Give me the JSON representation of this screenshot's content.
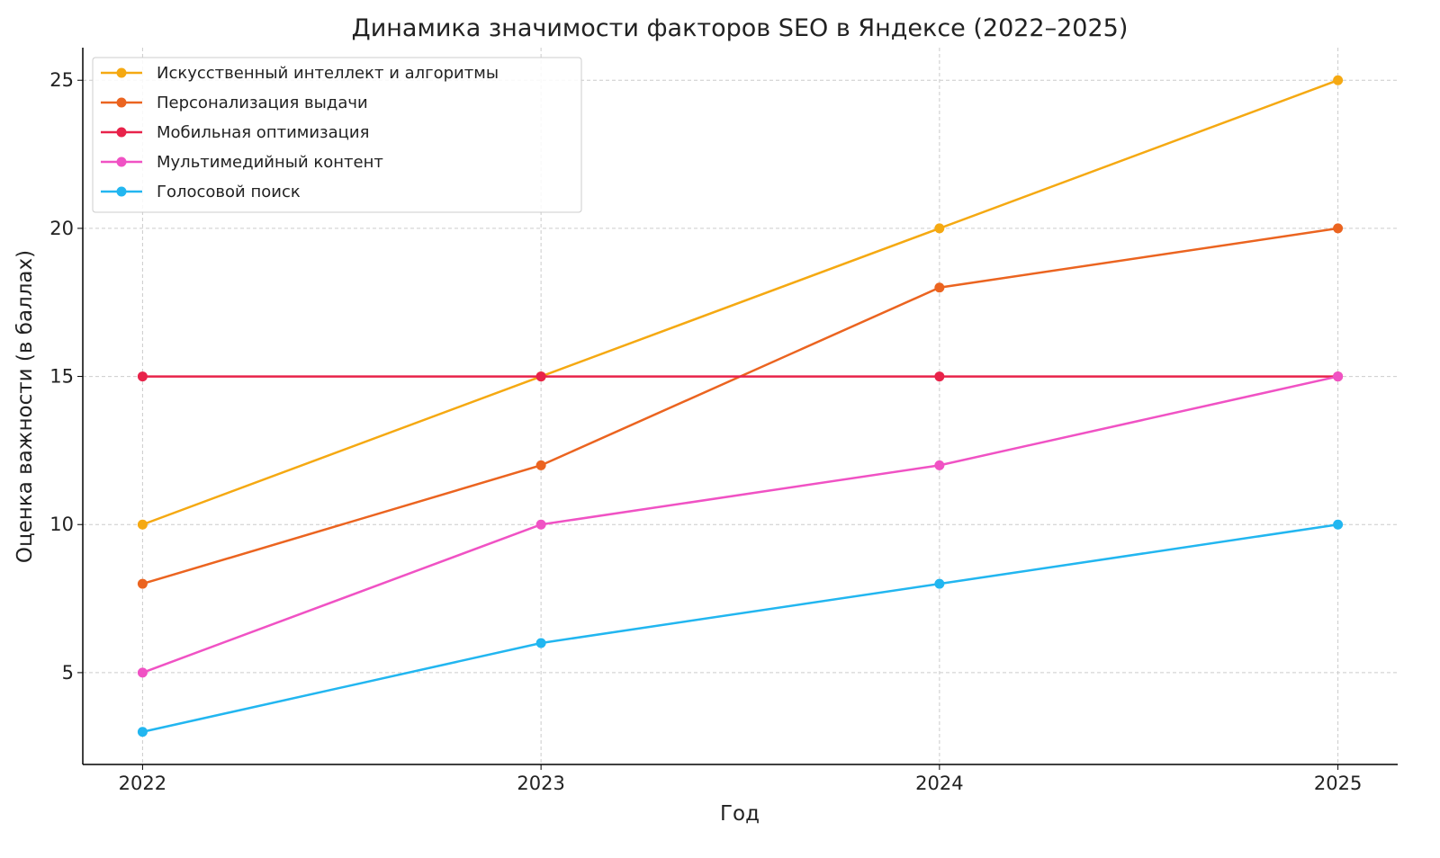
{
  "chart_data": {
    "type": "line",
    "title": "Динамика значимости факторов SEO в Яндексе (2022–2025)",
    "xlabel": "Год",
    "ylabel": "Оценка важности (в баллах)",
    "x": [
      2022,
      2023,
      2024,
      2025
    ],
    "xticks": [
      "2022",
      "2023",
      "2024",
      "2025"
    ],
    "yticks": [
      "5",
      "10",
      "15",
      "20",
      "25"
    ],
    "xlim": [
      2021.85,
      2025.15
    ],
    "ylim": [
      1.9,
      26.1
    ],
    "grid": true,
    "legend_position": "top-left",
    "series": [
      {
        "name": "Искусственный интеллект и алгоритмы",
        "values": [
          10,
          15,
          20,
          25
        ],
        "color": "#f5a912"
      },
      {
        "name": "Персонализация выдачи",
        "values": [
          8,
          12,
          18,
          20
        ],
        "color": "#eb6420"
      },
      {
        "name": "Мобильная оптимизация",
        "values": [
          15,
          15,
          15,
          15
        ],
        "color": "#e8234a"
      },
      {
        "name": "Мультимедийный контент",
        "values": [
          5,
          10,
          12,
          15
        ],
        "color": "#f052c4"
      },
      {
        "name": "Голосовой поиск",
        "values": [
          3,
          6,
          8,
          10
        ],
        "color": "#22b6f0"
      }
    ]
  }
}
